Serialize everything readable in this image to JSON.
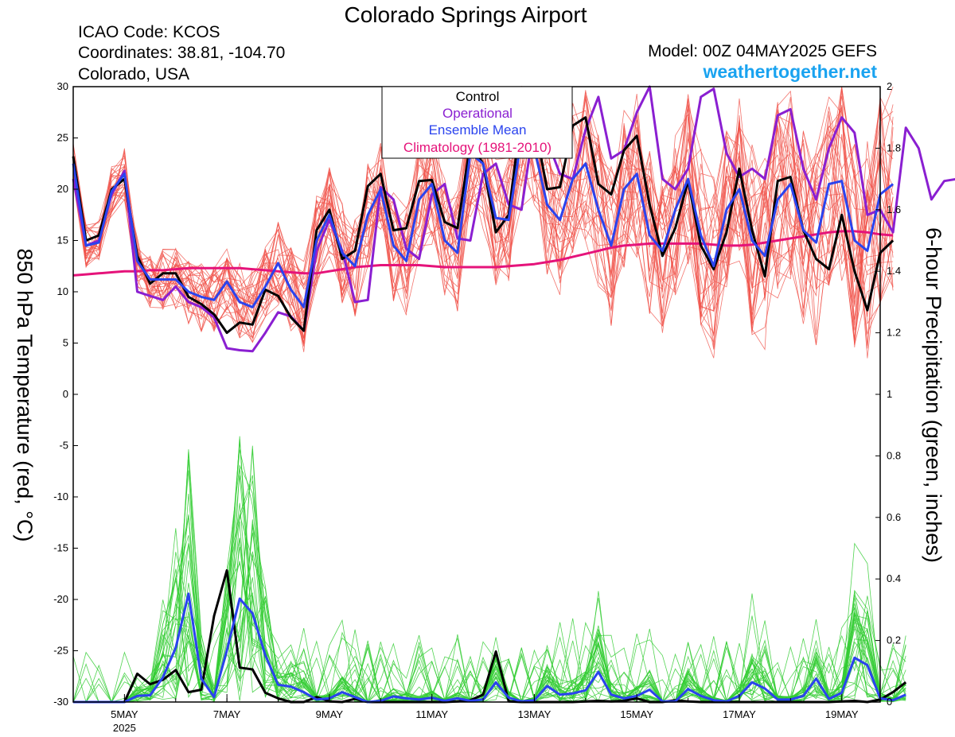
{
  "header": {
    "title": "Colorado Springs Airport",
    "icao": "ICAO Code: KCOS",
    "coords": "Coordinates: 38.81, -104.70",
    "region": "Colorado, USA",
    "model": "Model: 00Z 04MAY2025 GEFS",
    "site": "weathertogether.net"
  },
  "colors": {
    "control": "#000000",
    "operational": "#8a1fd1",
    "ensemble_mean": "#2a43ee",
    "climatology": "#e5137a",
    "members_temp": "#f0524a",
    "members_precip": "#33cc33",
    "site": "#1aa3f0"
  },
  "chart_data": {
    "type": "line",
    "title": "Colorado Springs Airport",
    "ylabel_left": "850 hPa Temperature (red, °C)",
    "ylabel_right": "6-hour Precipitation (green, inches)",
    "ylim_left": [
      -30,
      30
    ],
    "ylim_right": [
      0,
      2
    ],
    "y_ticks_left": [
      "30",
      "25",
      "20",
      "15",
      "10",
      "5",
      "0",
      "-5",
      "-10",
      "-15",
      "-20",
      "-25",
      "-30"
    ],
    "y_ticks_right": [
      "2",
      "1.8",
      "1.6",
      "1.4",
      "1.2",
      "1",
      "0.8",
      "0.6",
      "0.4",
      "0.2",
      "0"
    ],
    "x_tick_labels": [
      "5MAY",
      "7MAY",
      "9MAY",
      "11MAY",
      "13MAY",
      "15MAY",
      "17MAY",
      "19MAY"
    ],
    "x_year_label": "2025",
    "x_start": "2025-05-04T00Z",
    "x_end": "2025-05-19T18Z",
    "step_hours": 6,
    "legend": {
      "position": "top-center",
      "entries": [
        "Control",
        "Operational",
        "Ensemble Mean",
        "Climatology (1981-2010)"
      ]
    },
    "series": [
      {
        "name": "Control",
        "axis": "temperature",
        "values": [
          23.2,
          15.0,
          15.5,
          20.0,
          21.0,
          13.5,
          10.8,
          11.8,
          11.8,
          9.5,
          8.8,
          7.8,
          6.0,
          7.0,
          6.8,
          10.2,
          9.6,
          7.5,
          6.2,
          16.0,
          18.0,
          13.2,
          14.0,
          20.3,
          21.5,
          16.0,
          16.2,
          20.8,
          20.9,
          16.8,
          16.2,
          24.5,
          22.5,
          15.8,
          17.5,
          27.5,
          26.5,
          20.0,
          20.2,
          26.2,
          27.0,
          20.5,
          19.5,
          23.8,
          25.2,
          18.5,
          13.5,
          16.2,
          20.8,
          14.5,
          12.2,
          15.8,
          22.0,
          16.0,
          11.5,
          20.8,
          21.2,
          16.0,
          13.2,
          12.2,
          17.5,
          12.0,
          8.2,
          13.8,
          15.0
        ]
      },
      {
        "name": "Operational",
        "axis": "temperature",
        "values": [
          21.0,
          14.5,
          15.0,
          19.5,
          21.8,
          10.0,
          9.6,
          9.2,
          10.5,
          9.0,
          8.5,
          7.5,
          4.5,
          4.3,
          4.2,
          6.0,
          8.0,
          7.6,
          6.2,
          14.0,
          17.0,
          14.0,
          9.0,
          9.2,
          20.2,
          19.0,
          14.2,
          13.2,
          19.5,
          20.5,
          15.2,
          15.0,
          21.5,
          22.5,
          18.5,
          18.0,
          26.5,
          24.8,
          21.5,
          21.0,
          25.8,
          29.0,
          23.0,
          23.8,
          27.5,
          30.0,
          21.0,
          20.0,
          22.0,
          29.0,
          29.8,
          23.5,
          21.2,
          22.0,
          21.0,
          27.2,
          27.8,
          22.0,
          19.0,
          24.0,
          27.0,
          25.5,
          17.5,
          18.0,
          15.8,
          26.0,
          24.0,
          19.0,
          20.8,
          21.0,
          18.5,
          26.2,
          28.0
        ]
      },
      {
        "name": "Ensemble Mean",
        "axis": "temperature",
        "values": [
          22.5,
          14.5,
          14.8,
          19.8,
          21.5,
          13.0,
          11.2,
          11.2,
          11.2,
          10.0,
          9.5,
          9.2,
          11.0,
          9.0,
          8.5,
          10.5,
          12.8,
          10.2,
          8.5,
          15.0,
          17.5,
          13.8,
          12.5,
          17.5,
          20.0,
          14.5,
          13.0,
          19.0,
          20.5,
          15.0,
          13.8,
          23.5,
          22.5,
          17.2,
          17.0,
          25.0,
          24.0,
          18.5,
          17.0,
          21.0,
          22.5,
          18.0,
          14.5,
          20.0,
          21.5,
          15.5,
          14.0,
          18.0,
          21.0,
          15.5,
          12.5,
          18.0,
          20.0,
          15.0,
          13.5,
          19.0,
          20.5,
          16.0,
          14.8,
          20.5,
          20.8,
          15.0,
          14.0,
          19.5,
          20.5
        ]
      },
      {
        "name": "Climatology (1981-2010)",
        "axis": "temperature",
        "values": [
          11.6,
          11.7,
          11.8,
          11.9,
          12.0,
          12.0,
          12.1,
          12.1,
          12.2,
          12.3,
          12.3,
          12.3,
          12.3,
          12.3,
          12.2,
          12.1,
          12.0,
          11.9,
          11.8,
          11.8,
          12.0,
          12.2,
          12.4,
          12.5,
          12.6,
          12.6,
          12.6,
          12.6,
          12.5,
          12.4,
          12.4,
          12.4,
          12.4,
          12.4,
          12.5,
          12.6,
          12.7,
          12.9,
          13.1,
          13.4,
          13.7,
          14.0,
          14.3,
          14.5,
          14.6,
          14.7,
          14.7,
          14.7,
          14.7,
          14.7,
          14.6,
          14.5,
          14.5,
          14.6,
          14.8,
          15.0,
          15.2,
          15.4,
          15.6,
          15.8,
          15.9,
          15.9,
          15.8,
          15.6,
          15.5
        ]
      },
      {
        "name": "Control",
        "axis": "precip",
        "values": [
          0,
          0,
          0,
          0,
          0,
          0.092,
          0.058,
          0.072,
          0.104,
          0.032,
          0.04,
          0.28,
          0.428,
          0.112,
          0.106,
          0.03,
          0.012,
          0,
          0,
          0.016,
          0.002,
          0,
          0.01,
          0,
          0,
          0,
          0,
          0,
          0,
          0,
          0.002,
          0.006,
          0.024,
          0.164,
          0.002,
          0,
          0,
          0,
          0,
          0,
          0.002,
          0.004,
          0.002,
          0.004,
          0.012,
          0,
          0,
          0.006,
          0.002,
          0,
          0,
          0,
          0,
          0,
          0,
          0,
          0,
          0,
          0,
          0,
          0.002,
          0.004,
          0,
          0.008,
          0.032,
          0.064
        ]
      },
      {
        "name": "Ensemble Mean",
        "axis": "precip",
        "values": [
          0,
          0,
          0,
          0,
          0,
          0.02,
          0.022,
          0.08,
          0.176,
          0.352,
          0.076,
          0.016,
          0.168,
          0.336,
          0.288,
          0.152,
          0.056,
          0.05,
          0.032,
          0.008,
          0.012,
          0.032,
          0.016,
          0,
          0.004,
          0.018,
          0.012,
          0.008,
          0.014,
          0.004,
          0.012,
          0.004,
          0.008,
          0.064,
          0.014,
          0.002,
          0.006,
          0.052,
          0.024,
          0.028,
          0.038,
          0.098,
          0.024,
          0.012,
          0.02,
          0.04,
          0.002,
          0.002,
          0.042,
          0.02,
          0.006,
          0.002,
          0.02,
          0.064,
          0.044,
          0.008,
          0.008,
          0.02,
          0.076,
          0.01,
          0.03,
          0.144,
          0.12,
          0.012,
          0.006,
          0.024
        ]
      }
    ]
  }
}
